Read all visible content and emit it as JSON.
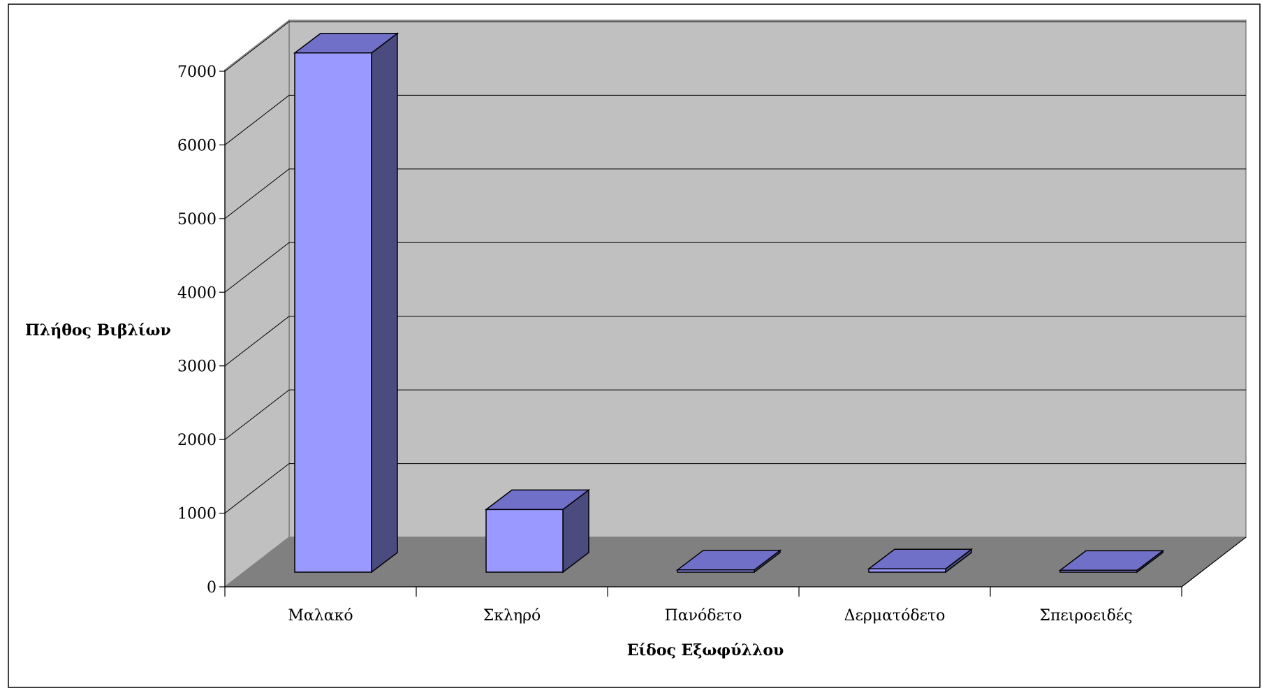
{
  "chart_data": {
    "type": "bar",
    "title": "",
    "xlabel": "Είδος Εξωφύλλου",
    "ylabel": "Πλήθος Βιβλίων",
    "categories": [
      "Μαλακό",
      "Σκληρό",
      "Πανόδετο",
      "Δερματόδετο",
      "Σπειροειδές"
    ],
    "values": [
      7050,
      850,
      30,
      45,
      25
    ],
    "ylim": [
      0,
      7000
    ],
    "yticks": [
      "0",
      "1000",
      "2000",
      "3000",
      "4000",
      "5000",
      "6000",
      "7000"
    ],
    "grid": true,
    "legend": "none",
    "three_d": true,
    "colors": {
      "bar_front": "#9999FF",
      "bar_top": "#7070C8",
      "bar_side": "#4B4B80",
      "wall": "#C0C0C0",
      "side_wall": "#C0C0C0",
      "floor": "#808080",
      "gridline": "#000000"
    }
  }
}
